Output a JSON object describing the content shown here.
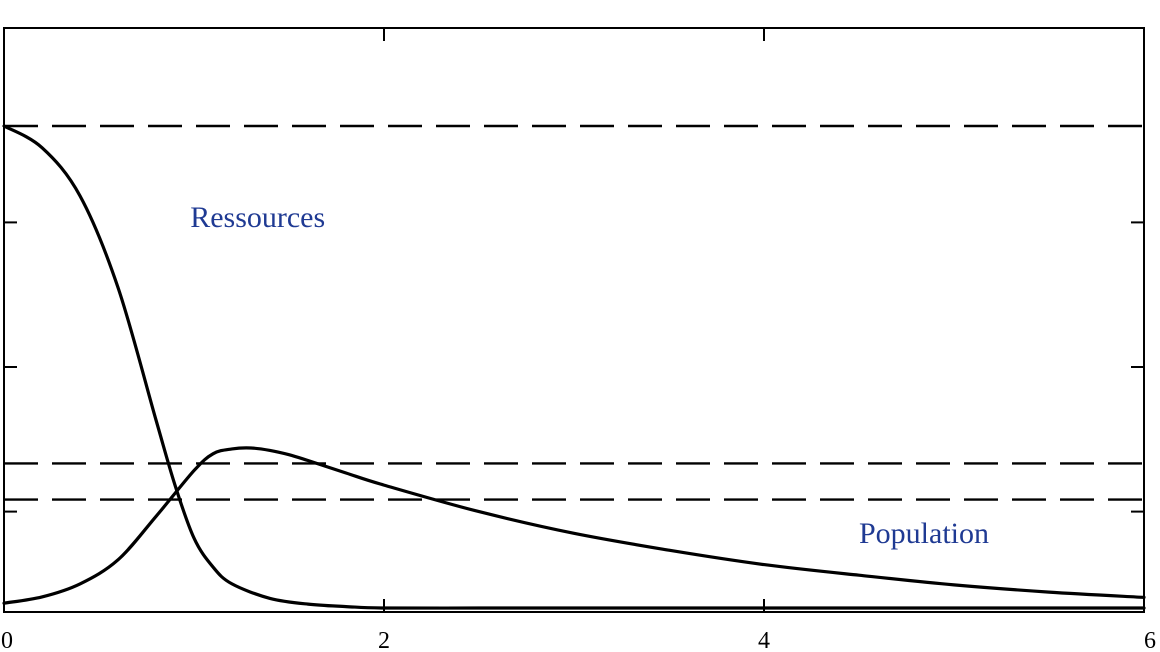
{
  "colors": {
    "axis": "#000000",
    "curve": "#000000",
    "reference_line": "#000000",
    "label": "#1f3a93"
  },
  "chart_data": {
    "type": "line",
    "xlim": [
      0,
      6
    ],
    "ylim": [
      0,
      1
    ],
    "grid": false,
    "x_ticks": [
      0,
      2,
      4,
      6
    ],
    "x_tick_labels": [
      "0",
      "2",
      "4",
      "6"
    ],
    "y_ticks": [
      0.2,
      0.5,
      0.8
    ],
    "series": [
      {
        "name": "Ressources",
        "line_style": "solid",
        "x": [
          0,
          0.2,
          0.4,
          0.6,
          0.8,
          0.9,
          1.0,
          1.1,
          1.2,
          1.4,
          1.6,
          1.8,
          2.0,
          2.5,
          3.0,
          4.0,
          5.0,
          6.0
        ],
        "y": [
          1.0,
          0.955,
          0.855,
          0.665,
          0.39,
          0.255,
          0.145,
          0.085,
          0.05,
          0.02,
          0.008,
          0.003,
          0.0,
          0.0,
          0.0,
          0.0,
          0.0,
          0.0
        ]
      },
      {
        "name": "Population",
        "line_style": "solid",
        "x": [
          0,
          0.2,
          0.4,
          0.6,
          0.8,
          1.0,
          1.1,
          1.2,
          1.3,
          1.4,
          1.5,
          1.6,
          1.8,
          2.0,
          2.5,
          3.0,
          3.5,
          4.0,
          4.5,
          5.0,
          5.5,
          6.0
        ],
        "y": [
          0.01,
          0.023,
          0.05,
          0.1,
          0.19,
          0.285,
          0.32,
          0.33,
          0.332,
          0.327,
          0.318,
          0.306,
          0.28,
          0.255,
          0.2,
          0.155,
          0.12,
          0.09,
          0.068,
          0.048,
          0.033,
          0.022
        ]
      }
    ],
    "reference_lines": [
      {
        "y": 1.0,
        "style": "dashed"
      },
      {
        "y": 0.3,
        "style": "dashed"
      },
      {
        "y": 0.225,
        "style": "dashed"
      }
    ],
    "annotations": [
      {
        "text": "Ressources",
        "x": 0.98,
        "y": 0.79
      },
      {
        "text": "Population",
        "x": 4.5,
        "y": 0.135
      }
    ]
  }
}
